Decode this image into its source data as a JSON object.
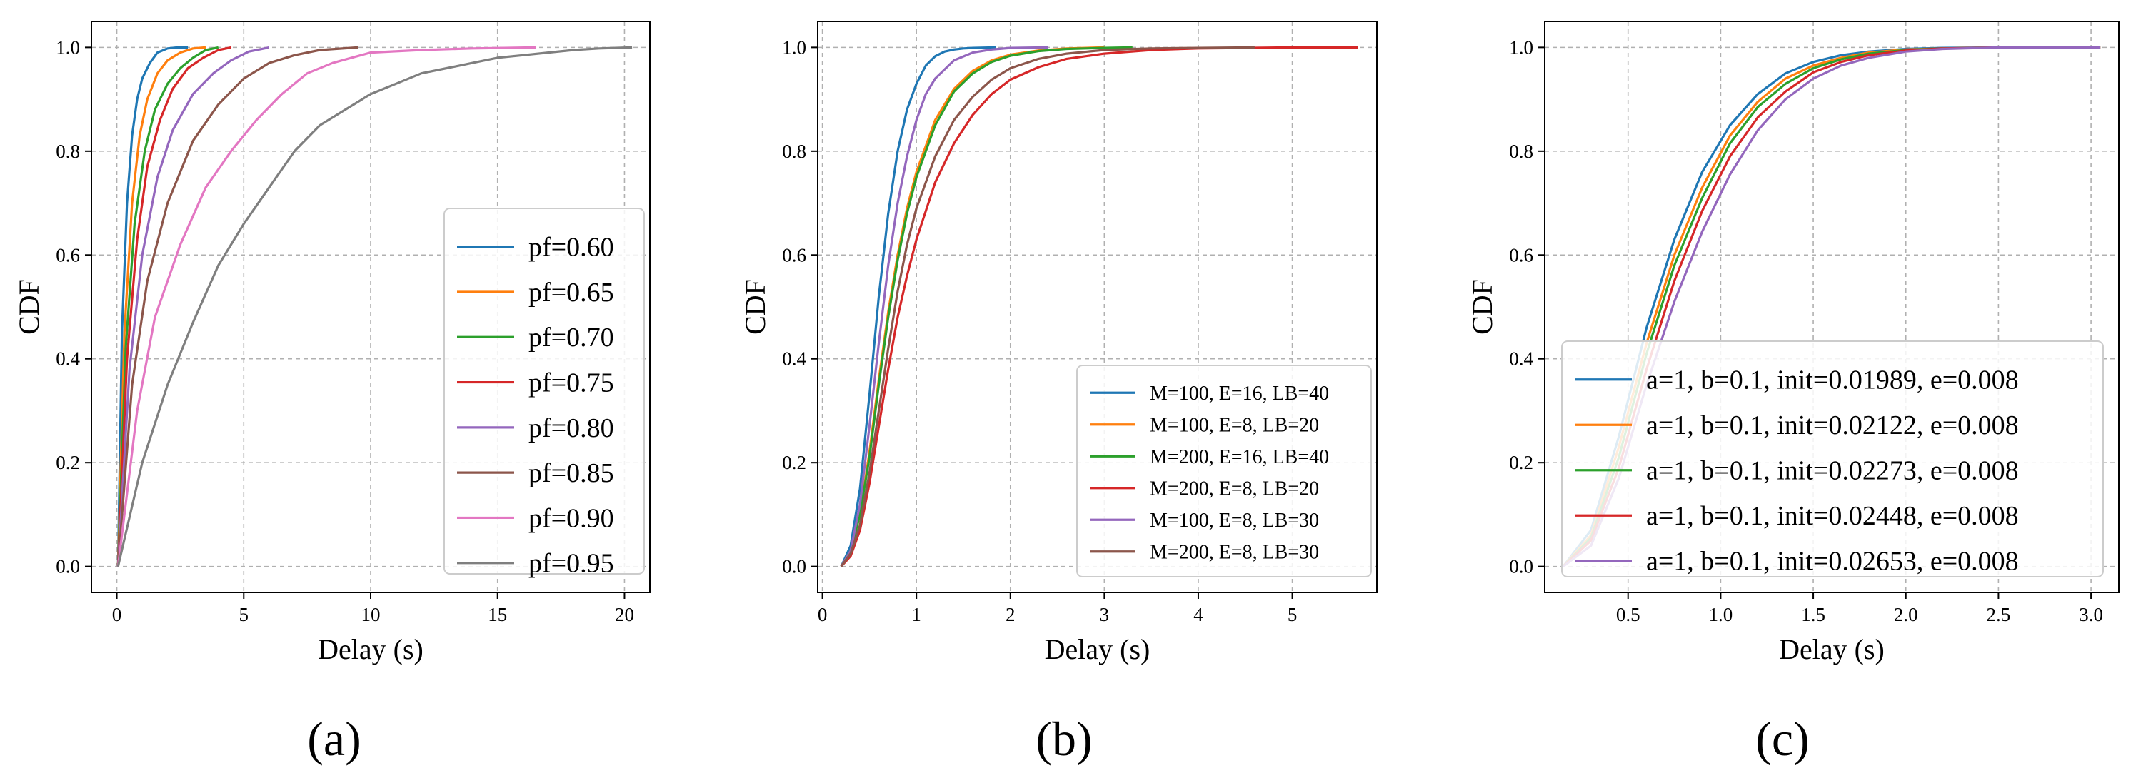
{
  "chart_data": [
    {
      "type": "line",
      "panel_label": "(a)",
      "xlabel": "Delay (s)",
      "ylabel": "CDF",
      "xlim": [
        -1,
        21
      ],
      "ylim": [
        -0.05,
        1.05
      ],
      "xticks": [
        0,
        5,
        10,
        15,
        20
      ],
      "xtick_labels": [
        "0",
        "5",
        "10",
        "15",
        "20"
      ],
      "yticks": [
        0.0,
        0.2,
        0.4,
        0.6,
        0.8,
        1.0
      ],
      "ytick_labels": [
        "0.0",
        "0.2",
        "0.4",
        "0.6",
        "0.8",
        "1.0"
      ],
      "grid": true,
      "legend_position": "center-right",
      "legend_font": 38,
      "series": [
        {
          "name": "pf=0.60",
          "color": "#1f77b4",
          "x": [
            0.05,
            0.2,
            0.4,
            0.6,
            0.8,
            1.0,
            1.3,
            1.6,
            2.0,
            2.4,
            2.8
          ],
          "y": [
            0,
            0.45,
            0.7,
            0.83,
            0.9,
            0.94,
            0.97,
            0.99,
            0.998,
            1.0,
            1.0
          ]
        },
        {
          "name": "pf=0.65",
          "color": "#ff7f0e",
          "x": [
            0.05,
            0.3,
            0.6,
            0.9,
            1.2,
            1.6,
            2.0,
            2.5,
            3.0,
            3.5
          ],
          "y": [
            0,
            0.45,
            0.7,
            0.83,
            0.9,
            0.95,
            0.975,
            0.99,
            0.998,
            1.0
          ]
        },
        {
          "name": "pf=0.70",
          "color": "#2ca02c",
          "x": [
            0.05,
            0.35,
            0.7,
            1.1,
            1.5,
            2.0,
            2.5,
            3.0,
            3.5,
            4.0
          ],
          "y": [
            0,
            0.42,
            0.66,
            0.8,
            0.88,
            0.93,
            0.96,
            0.98,
            0.995,
            1.0
          ]
        },
        {
          "name": "pf=0.75",
          "color": "#d62728",
          "x": [
            0.05,
            0.4,
            0.8,
            1.2,
            1.7,
            2.2,
            2.8,
            3.4,
            4.0,
            4.5
          ],
          "y": [
            0,
            0.4,
            0.63,
            0.77,
            0.86,
            0.92,
            0.96,
            0.98,
            0.995,
            1.0
          ]
        },
        {
          "name": "pf=0.80",
          "color": "#9467bd",
          "x": [
            0.05,
            0.5,
            1.0,
            1.6,
            2.2,
            3.0,
            3.8,
            4.5,
            5.2,
            6.0
          ],
          "y": [
            0,
            0.38,
            0.6,
            0.75,
            0.84,
            0.91,
            0.95,
            0.975,
            0.992,
            1.0
          ]
        },
        {
          "name": "pf=0.85",
          "color": "#8c564b",
          "x": [
            0.05,
            0.6,
            1.2,
            2.0,
            3.0,
            4.0,
            5.0,
            6.0,
            7.0,
            8.0,
            9.5
          ],
          "y": [
            0,
            0.35,
            0.55,
            0.7,
            0.82,
            0.89,
            0.94,
            0.97,
            0.985,
            0.995,
            1.0
          ]
        },
        {
          "name": "pf=0.90",
          "color": "#e377c2",
          "x": [
            0.05,
            0.8,
            1.5,
            2.5,
            3.5,
            4.5,
            5.5,
            6.5,
            7.5,
            8.5,
            10.0,
            12.0,
            14.0,
            16.5
          ],
          "y": [
            0,
            0.3,
            0.48,
            0.62,
            0.73,
            0.8,
            0.86,
            0.91,
            0.95,
            0.97,
            0.99,
            0.995,
            0.998,
            1.0
          ]
        },
        {
          "name": "pf=0.95",
          "color": "#7f7f7f",
          "x": [
            0.05,
            1.0,
            2.0,
            3.0,
            4.0,
            5.0,
            6.0,
            7.0,
            8.0,
            9.0,
            10.0,
            11.0,
            12.0,
            13.0,
            14.0,
            15.0,
            16.0,
            17.0,
            18.0,
            19.0,
            20.3
          ],
          "y": [
            0,
            0.2,
            0.35,
            0.47,
            0.58,
            0.66,
            0.73,
            0.8,
            0.85,
            0.88,
            0.91,
            0.93,
            0.95,
            0.96,
            0.97,
            0.98,
            0.985,
            0.99,
            0.995,
            0.998,
            1.0
          ]
        }
      ]
    },
    {
      "type": "line",
      "panel_label": "(b)",
      "xlabel": "Delay (s)",
      "ylabel": "CDF",
      "xlim": [
        -0.05,
        5.9
      ],
      "ylim": [
        -0.05,
        1.05
      ],
      "xticks": [
        0,
        1,
        2,
        3,
        4,
        5
      ],
      "xtick_labels": [
        "0",
        "1",
        "2",
        "3",
        "4",
        "5"
      ],
      "yticks": [
        0.0,
        0.2,
        0.4,
        0.6,
        0.8,
        1.0
      ],
      "ytick_labels": [
        "0.0",
        "0.2",
        "0.4",
        "0.6",
        "0.8",
        "1.0"
      ],
      "grid": true,
      "legend_position": "lower-right",
      "legend_font": 28,
      "series": [
        {
          "name": "M=100, E=16, LB=40",
          "color": "#1f77b4",
          "x": [
            0.2,
            0.3,
            0.4,
            0.5,
            0.6,
            0.7,
            0.8,
            0.9,
            1.0,
            1.1,
            1.2,
            1.3,
            1.4,
            1.5,
            1.6,
            1.85
          ],
          "y": [
            0,
            0.04,
            0.15,
            0.33,
            0.52,
            0.68,
            0.8,
            0.88,
            0.93,
            0.965,
            0.983,
            0.992,
            0.996,
            0.998,
            0.999,
            1.0
          ]
        },
        {
          "name": "M=100, E=8, LB=20",
          "color": "#ff7f0e",
          "x": [
            0.2,
            0.3,
            0.4,
            0.5,
            0.6,
            0.7,
            0.8,
            0.9,
            1.0,
            1.2,
            1.4,
            1.6,
            1.8,
            2.0,
            2.3,
            2.6,
            3.0
          ],
          "y": [
            0,
            0.03,
            0.1,
            0.22,
            0.36,
            0.49,
            0.6,
            0.69,
            0.76,
            0.86,
            0.92,
            0.955,
            0.975,
            0.986,
            0.994,
            0.998,
            1.0
          ]
        },
        {
          "name": "M=200, E=16, LB=40",
          "color": "#2ca02c",
          "x": [
            0.2,
            0.3,
            0.4,
            0.5,
            0.6,
            0.7,
            0.8,
            0.9,
            1.0,
            1.2,
            1.4,
            1.6,
            1.8,
            2.0,
            2.3,
            2.6,
            3.0,
            3.3
          ],
          "y": [
            0,
            0.03,
            0.1,
            0.21,
            0.35,
            0.48,
            0.59,
            0.68,
            0.75,
            0.85,
            0.915,
            0.95,
            0.972,
            0.984,
            0.993,
            0.997,
            0.999,
            1.0
          ]
        },
        {
          "name": "M=200, E=8, LB=20",
          "color": "#d62728",
          "x": [
            0.2,
            0.3,
            0.4,
            0.5,
            0.6,
            0.7,
            0.8,
            0.9,
            1.0,
            1.2,
            1.4,
            1.6,
            1.8,
            2.0,
            2.3,
            2.6,
            3.0,
            3.5,
            4.0,
            4.5,
            5.0,
            5.7
          ],
          "y": [
            0,
            0.02,
            0.07,
            0.16,
            0.27,
            0.38,
            0.48,
            0.56,
            0.63,
            0.74,
            0.815,
            0.87,
            0.91,
            0.938,
            0.962,
            0.978,
            0.988,
            0.995,
            0.998,
            0.999,
            1.0,
            1.0
          ]
        },
        {
          "name": "M=100, E=8, LB=30",
          "color": "#9467bd",
          "x": [
            0.2,
            0.3,
            0.4,
            0.5,
            0.6,
            0.7,
            0.8,
            0.9,
            1.0,
            1.1,
            1.2,
            1.4,
            1.6,
            1.8,
            2.0,
            2.4
          ],
          "y": [
            0,
            0.03,
            0.12,
            0.27,
            0.43,
            0.58,
            0.7,
            0.79,
            0.86,
            0.91,
            0.94,
            0.975,
            0.99,
            0.996,
            0.999,
            1.0
          ]
        },
        {
          "name": "M=200, E=8, LB=30",
          "color": "#8c564b",
          "x": [
            0.2,
            0.3,
            0.4,
            0.5,
            0.6,
            0.7,
            0.8,
            0.9,
            1.0,
            1.2,
            1.4,
            1.6,
            1.8,
            2.0,
            2.3,
            2.6,
            3.0,
            3.5,
            4.0,
            4.6
          ],
          "y": [
            0,
            0.025,
            0.08,
            0.18,
            0.3,
            0.42,
            0.53,
            0.62,
            0.69,
            0.79,
            0.86,
            0.905,
            0.938,
            0.96,
            0.978,
            0.988,
            0.995,
            0.998,
            0.999,
            1.0
          ]
        }
      ]
    },
    {
      "type": "line",
      "panel_label": "(c)",
      "xlabel": "Delay (s)",
      "ylabel": "CDF",
      "xlim": [
        0.05,
        3.15
      ],
      "ylim": [
        -0.05,
        1.05
      ],
      "xticks": [
        0.5,
        1.0,
        1.5,
        2.0,
        2.5,
        3.0
      ],
      "xtick_labels": [
        "0.5",
        "1.0",
        "1.5",
        "2.0",
        "2.5",
        "3.0"
      ],
      "yticks": [
        0.0,
        0.2,
        0.4,
        0.6,
        0.8,
        1.0
      ],
      "ytick_labels": [
        "0.0",
        "0.2",
        "0.4",
        "0.6",
        "0.8",
        "1.0"
      ],
      "grid": true,
      "legend_position": "lower-right",
      "legend_font": 38,
      "series": [
        {
          "name": "a=1, b=0.1, init=0.01989, e=0.008",
          "color": "#1f77b4",
          "x": [
            0.15,
            0.3,
            0.45,
            0.6,
            0.75,
            0.9,
            1.05,
            1.2,
            1.35,
            1.5,
            1.65,
            1.8,
            2.0,
            2.2,
            2.5,
            2.8,
            3.05
          ],
          "y": [
            0,
            0.07,
            0.25,
            0.46,
            0.63,
            0.76,
            0.85,
            0.91,
            0.95,
            0.972,
            0.985,
            0.992,
            0.997,
            0.999,
            1.0,
            1.0,
            1.0
          ]
        },
        {
          "name": "a=1, b=0.1, init=0.02122, e=0.008",
          "color": "#ff7f0e",
          "x": [
            0.15,
            0.3,
            0.45,
            0.6,
            0.75,
            0.9,
            1.05,
            1.2,
            1.35,
            1.5,
            1.65,
            1.8,
            2.0,
            2.2,
            2.5,
            2.8,
            3.05
          ],
          "y": [
            0,
            0.06,
            0.23,
            0.43,
            0.6,
            0.73,
            0.83,
            0.895,
            0.94,
            0.965,
            0.98,
            0.99,
            0.996,
            0.998,
            1.0,
            1.0,
            1.0
          ]
        },
        {
          "name": "a=1, b=0.1, init=0.02273, e=0.008",
          "color": "#2ca02c",
          "x": [
            0.15,
            0.3,
            0.45,
            0.6,
            0.75,
            0.9,
            1.05,
            1.2,
            1.35,
            1.5,
            1.65,
            1.8,
            2.0,
            2.2,
            2.5,
            2.8,
            3.05
          ],
          "y": [
            0,
            0.055,
            0.21,
            0.41,
            0.58,
            0.71,
            0.815,
            0.885,
            0.93,
            0.96,
            0.977,
            0.988,
            0.995,
            0.998,
            1.0,
            1.0,
            1.0
          ]
        },
        {
          "name": "a=1, b=0.1, init=0.02448, e=0.008",
          "color": "#d62728",
          "x": [
            0.15,
            0.3,
            0.45,
            0.6,
            0.75,
            0.9,
            1.05,
            1.2,
            1.35,
            1.5,
            1.65,
            1.8,
            2.0,
            2.2,
            2.5,
            2.8,
            3.05
          ],
          "y": [
            0,
            0.05,
            0.19,
            0.38,
            0.55,
            0.685,
            0.79,
            0.865,
            0.915,
            0.952,
            0.972,
            0.985,
            0.994,
            0.998,
            1.0,
            1.0,
            1.0
          ]
        },
        {
          "name": "a=1, b=0.1, init=0.02653, e=0.008",
          "color": "#9467bd",
          "x": [
            0.15,
            0.3,
            0.45,
            0.6,
            0.75,
            0.9,
            1.05,
            1.2,
            1.35,
            1.5,
            1.65,
            1.8,
            2.0,
            2.2,
            2.5,
            2.8,
            3.05
          ],
          "y": [
            0,
            0.04,
            0.17,
            0.35,
            0.51,
            0.645,
            0.755,
            0.84,
            0.9,
            0.94,
            0.965,
            0.98,
            0.992,
            0.997,
            1.0,
            1.0,
            1.0
          ]
        }
      ]
    }
  ]
}
